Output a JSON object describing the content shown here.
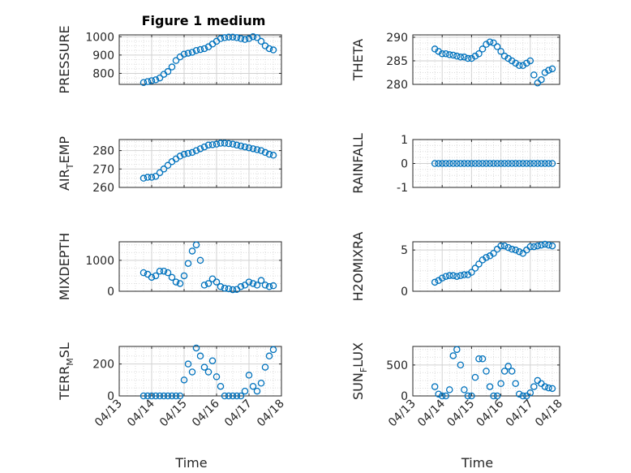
{
  "figure_title": "Figure 1 medium",
  "chart_data": [
    {
      "type": "scatter",
      "title": "Figure 1 medium",
      "ylabel_main": "PRESSURE",
      "ylabel_sub": "",
      "xlabel": "",
      "yticks": [
        "800",
        "900",
        "1000"
      ],
      "ytick_values": [
        800,
        900,
        1000
      ],
      "ylim": [
        740,
        1010
      ],
      "xticks": [],
      "xlim": [
        "04/13",
        "04/18"
      ],
      "grid": "major-and-minor",
      "series": [
        {
          "x": [
            "2021-04-13T18:00",
            "2021-04-13T21:00",
            "2021-04-14T00:00",
            "2021-04-14T03:00",
            "2021-04-14T06:00",
            "2021-04-14T09:00",
            "2021-04-14T12:00",
            "2021-04-14T15:00",
            "2021-04-14T18:00",
            "2021-04-14T21:00",
            "2021-04-15T00:00",
            "2021-04-15T03:00",
            "2021-04-15T06:00",
            "2021-04-15T09:00",
            "2021-04-15T12:00",
            "2021-04-15T15:00",
            "2021-04-15T18:00",
            "2021-04-15T21:00",
            "2021-04-16T00:00",
            "2021-04-16T03:00",
            "2021-04-16T06:00",
            "2021-04-16T09:00",
            "2021-04-16T12:00",
            "2021-04-16T15:00",
            "2021-04-16T18:00",
            "2021-04-16T21:00",
            "2021-04-17T00:00",
            "2021-04-17T03:00",
            "2021-04-17T06:00",
            "2021-04-17T09:00",
            "2021-04-17T12:00",
            "2021-04-17T15:00",
            "2021-04-17T18:00"
          ],
          "y": [
            750,
            755,
            760,
            765,
            775,
            795,
            810,
            835,
            870,
            890,
            905,
            910,
            915,
            925,
            930,
            935,
            945,
            960,
            975,
            990,
            995,
            998,
            998,
            995,
            990,
            985,
            990,
            1000,
            995,
            975,
            950,
            935,
            928
          ]
        }
      ]
    },
    {
      "type": "scatter",
      "ylabel_main": "THETA",
      "ylabel_sub": "",
      "xlabel": "",
      "yticks": [
        "280",
        "285",
        "290"
      ],
      "ytick_values": [
        280,
        285,
        290
      ],
      "ylim": [
        280,
        290.5
      ],
      "xticks": [],
      "xlim": [
        "04/13",
        "04/18"
      ],
      "grid": "major-and-minor",
      "series": [
        {
          "x": [
            "2021-04-13T18:00",
            "2021-04-13T21:00",
            "2021-04-14T00:00",
            "2021-04-14T03:00",
            "2021-04-14T06:00",
            "2021-04-14T09:00",
            "2021-04-14T12:00",
            "2021-04-14T15:00",
            "2021-04-14T18:00",
            "2021-04-14T21:00",
            "2021-04-15T00:00",
            "2021-04-15T03:00",
            "2021-04-15T06:00",
            "2021-04-15T09:00",
            "2021-04-15T12:00",
            "2021-04-15T15:00",
            "2021-04-15T18:00",
            "2021-04-15T21:00",
            "2021-04-16T00:00",
            "2021-04-16T03:00",
            "2021-04-16T06:00",
            "2021-04-16T09:00",
            "2021-04-16T12:00",
            "2021-04-16T15:00",
            "2021-04-16T18:00",
            "2021-04-16T21:00",
            "2021-04-17T00:00",
            "2021-04-17T03:00",
            "2021-04-17T06:00",
            "2021-04-17T09:00",
            "2021-04-17T12:00",
            "2021-04-17T15:00",
            "2021-04-17T18:00"
          ],
          "y": [
            287.5,
            287,
            286.5,
            286.5,
            286.3,
            286.2,
            286,
            285.8,
            285.8,
            285.5,
            285.5,
            286,
            286.5,
            287.5,
            288.5,
            289,
            288.8,
            288,
            287,
            286,
            285.5,
            285,
            284.5,
            284,
            284,
            284.5,
            285,
            282,
            280.3,
            281,
            282.5,
            283,
            283.3
          ]
        }
      ]
    },
    {
      "type": "scatter",
      "ylabel_main": "AIR",
      "ylabel_sub": "T",
      "ylabel_tail": "EMP",
      "xlabel": "",
      "yticks": [
        "260",
        "270",
        "280"
      ],
      "ytick_values": [
        260,
        270,
        280
      ],
      "ylim": [
        260,
        286
      ],
      "xticks": [],
      "xlim": [
        "04/13",
        "04/18"
      ],
      "grid": "major-and-minor",
      "series": [
        {
          "x": [
            "2021-04-13T18:00",
            "2021-04-13T21:00",
            "2021-04-14T00:00",
            "2021-04-14T03:00",
            "2021-04-14T06:00",
            "2021-04-14T09:00",
            "2021-04-14T12:00",
            "2021-04-14T15:00",
            "2021-04-14T18:00",
            "2021-04-14T21:00",
            "2021-04-15T00:00",
            "2021-04-15T03:00",
            "2021-04-15T06:00",
            "2021-04-15T09:00",
            "2021-04-15T12:00",
            "2021-04-15T15:00",
            "2021-04-15T18:00",
            "2021-04-15T21:00",
            "2021-04-16T00:00",
            "2021-04-16T03:00",
            "2021-04-16T06:00",
            "2021-04-16T09:00",
            "2021-04-16T12:00",
            "2021-04-16T15:00",
            "2021-04-16T18:00",
            "2021-04-16T21:00",
            "2021-04-17T00:00",
            "2021-04-17T03:00",
            "2021-04-17T06:00",
            "2021-04-17T09:00",
            "2021-04-17T12:00",
            "2021-04-17T15:00",
            "2021-04-17T18:00"
          ],
          "y": [
            265,
            265.5,
            265.5,
            266,
            268,
            270,
            272,
            274,
            275.5,
            277,
            278,
            278.5,
            279,
            280,
            281,
            282,
            283,
            283.2,
            283.5,
            284,
            284,
            283.8,
            283.5,
            283,
            282.5,
            282,
            281.5,
            281,
            280.5,
            280,
            279,
            278,
            277.5
          ]
        }
      ]
    },
    {
      "type": "scatter",
      "ylabel_main": "RAINFALL",
      "ylabel_sub": "",
      "xlabel": "",
      "yticks": [
        "-1",
        "0",
        "1"
      ],
      "ytick_values": [
        -1,
        0,
        1
      ],
      "ylim": [
        -1,
        1
      ],
      "xticks": [],
      "xlim": [
        "04/13",
        "04/18"
      ],
      "grid": "major-and-minor",
      "series": [
        {
          "x": [
            "2021-04-13T18:00",
            "2021-04-13T21:00",
            "2021-04-14T00:00",
            "2021-04-14T03:00",
            "2021-04-14T06:00",
            "2021-04-14T09:00",
            "2021-04-14T12:00",
            "2021-04-14T15:00",
            "2021-04-14T18:00",
            "2021-04-14T21:00",
            "2021-04-15T00:00",
            "2021-04-15T03:00",
            "2021-04-15T06:00",
            "2021-04-15T09:00",
            "2021-04-15T12:00",
            "2021-04-15T15:00",
            "2021-04-15T18:00",
            "2021-04-15T21:00",
            "2021-04-16T00:00",
            "2021-04-16T03:00",
            "2021-04-16T06:00",
            "2021-04-16T09:00",
            "2021-04-16T12:00",
            "2021-04-16T15:00",
            "2021-04-16T18:00",
            "2021-04-16T21:00",
            "2021-04-17T00:00",
            "2021-04-17T03:00",
            "2021-04-17T06:00",
            "2021-04-17T09:00",
            "2021-04-17T12:00",
            "2021-04-17T15:00",
            "2021-04-17T18:00"
          ],
          "y": [
            0,
            0,
            0,
            0,
            0,
            0,
            0,
            0,
            0,
            0,
            0,
            0,
            0,
            0,
            0,
            0,
            0,
            0,
            0,
            0,
            0,
            0,
            0,
            0,
            0,
            0,
            0,
            0,
            0,
            0,
            0,
            0,
            0
          ]
        }
      ]
    },
    {
      "type": "scatter",
      "ylabel_main": "MIXDEPTH",
      "ylabel_sub": "",
      "xlabel": "",
      "yticks": [
        "0",
        "1000"
      ],
      "ytick_values": [
        0,
        1000
      ],
      "ylim": [
        0,
        1600
      ],
      "xticks": [],
      "xlim": [
        "04/13",
        "04/18"
      ],
      "grid": "major-and-minor",
      "series": [
        {
          "x": [
            "2021-04-13T18:00",
            "2021-04-13T21:00",
            "2021-04-14T00:00",
            "2021-04-14T03:00",
            "2021-04-14T06:00",
            "2021-04-14T09:00",
            "2021-04-14T12:00",
            "2021-04-14T15:00",
            "2021-04-14T18:00",
            "2021-04-14T21:00",
            "2021-04-15T00:00",
            "2021-04-15T03:00",
            "2021-04-15T06:00",
            "2021-04-15T09:00",
            "2021-04-15T12:00",
            "2021-04-15T15:00",
            "2021-04-15T18:00",
            "2021-04-15T21:00",
            "2021-04-16T00:00",
            "2021-04-16T03:00",
            "2021-04-16T06:00",
            "2021-04-16T09:00",
            "2021-04-16T12:00",
            "2021-04-16T15:00",
            "2021-04-16T18:00",
            "2021-04-16T21:00",
            "2021-04-17T00:00",
            "2021-04-17T03:00",
            "2021-04-17T06:00",
            "2021-04-17T09:00",
            "2021-04-17T12:00",
            "2021-04-17T15:00",
            "2021-04-17T18:00"
          ],
          "y": [
            600,
            550,
            450,
            500,
            650,
            650,
            600,
            450,
            300,
            250,
            500,
            900,
            1300,
            1500,
            1000,
            200,
            250,
            400,
            300,
            150,
            100,
            80,
            50,
            60,
            150,
            200,
            300,
            250,
            200,
            350,
            200,
            150,
            180
          ]
        }
      ]
    },
    {
      "type": "scatter",
      "ylabel_main": "H2OMIXRA",
      "ylabel_sub": "",
      "xlabel": "",
      "yticks": [
        "0",
        "5"
      ],
      "ytick_values": [
        0,
        5
      ],
      "ylim": [
        0,
        6
      ],
      "xticks": [],
      "xlim": [
        "04/13",
        "04/18"
      ],
      "grid": "major-and-minor",
      "series": [
        {
          "x": [
            "2021-04-13T18:00",
            "2021-04-13T21:00",
            "2021-04-14T00:00",
            "2021-04-14T03:00",
            "2021-04-14T06:00",
            "2021-04-14T09:00",
            "2021-04-14T12:00",
            "2021-04-14T15:00",
            "2021-04-14T18:00",
            "2021-04-14T21:00",
            "2021-04-15T00:00",
            "2021-04-15T03:00",
            "2021-04-15T06:00",
            "2021-04-15T09:00",
            "2021-04-15T12:00",
            "2021-04-15T15:00",
            "2021-04-15T18:00",
            "2021-04-15T21:00",
            "2021-04-16T00:00",
            "2021-04-16T03:00",
            "2021-04-16T06:00",
            "2021-04-16T09:00",
            "2021-04-16T12:00",
            "2021-04-16T15:00",
            "2021-04-16T18:00",
            "2021-04-16T21:00",
            "2021-04-17T00:00",
            "2021-04-17T03:00",
            "2021-04-17T06:00",
            "2021-04-17T09:00",
            "2021-04-17T12:00",
            "2021-04-17T15:00",
            "2021-04-17T18:00"
          ],
          "y": [
            1.1,
            1.3,
            1.6,
            1.8,
            1.9,
            1.9,
            1.8,
            1.9,
            2,
            2,
            2.3,
            2.8,
            3.3,
            3.8,
            4.1,
            4.3,
            4.6,
            5.1,
            5.5,
            5.5,
            5.3,
            5.1,
            5,
            4.8,
            4.6,
            5,
            5.4,
            5.4,
            5.5,
            5.6,
            5.7,
            5.6,
            5.5
          ]
        }
      ]
    },
    {
      "type": "scatter",
      "ylabel_main": "TERR",
      "ylabel_sub": "M",
      "ylabel_tail": "SL",
      "xlabel": "Time",
      "yticks": [
        "0",
        "200"
      ],
      "ytick_values": [
        0,
        200
      ],
      "ylim": [
        0,
        310
      ],
      "xticks": [
        "04/13",
        "04/14",
        "04/15",
        "04/16",
        "04/17",
        "04/18"
      ],
      "xlim": [
        "04/13",
        "04/18"
      ],
      "grid": "major-and-minor",
      "series": [
        {
          "x": [
            "2021-04-13T18:00",
            "2021-04-13T21:00",
            "2021-04-14T00:00",
            "2021-04-14T03:00",
            "2021-04-14T06:00",
            "2021-04-14T09:00",
            "2021-04-14T12:00",
            "2021-04-14T15:00",
            "2021-04-14T18:00",
            "2021-04-14T21:00",
            "2021-04-15T00:00",
            "2021-04-15T03:00",
            "2021-04-15T06:00",
            "2021-04-15T09:00",
            "2021-04-15T12:00",
            "2021-04-15T15:00",
            "2021-04-15T18:00",
            "2021-04-15T21:00",
            "2021-04-16T00:00",
            "2021-04-16T03:00",
            "2021-04-16T06:00",
            "2021-04-16T09:00",
            "2021-04-16T12:00",
            "2021-04-16T15:00",
            "2021-04-16T18:00",
            "2021-04-16T21:00",
            "2021-04-17T00:00",
            "2021-04-17T03:00",
            "2021-04-17T06:00",
            "2021-04-17T09:00",
            "2021-04-17T12:00",
            "2021-04-17T15:00",
            "2021-04-17T18:00"
          ],
          "y": [
            0,
            0,
            0,
            0,
            0,
            0,
            0,
            0,
            0,
            0,
            100,
            200,
            150,
            300,
            250,
            180,
            150,
            220,
            120,
            60,
            0,
            0,
            0,
            0,
            0,
            30,
            130,
            60,
            30,
            80,
            180,
            250,
            290
          ]
        }
      ]
    },
    {
      "type": "scatter",
      "ylabel_main": "SUN",
      "ylabel_sub": "F",
      "ylabel_tail": "LUX",
      "xlabel": "Time",
      "yticks": [
        "0",
        "500"
      ],
      "ytick_values": [
        0,
        500
      ],
      "ylim": [
        0,
        800
      ],
      "xticks": [
        "04/13",
        "04/14",
        "04/15",
        "04/16",
        "04/17",
        "04/18"
      ],
      "xlim": [
        "04/13",
        "04/18"
      ],
      "grid": "major-and-minor",
      "series": [
        {
          "x": [
            "2021-04-13T18:00",
            "2021-04-13T21:00",
            "2021-04-14T00:00",
            "2021-04-14T03:00",
            "2021-04-14T06:00",
            "2021-04-14T09:00",
            "2021-04-14T12:00",
            "2021-04-14T15:00",
            "2021-04-14T18:00",
            "2021-04-14T21:00",
            "2021-04-15T00:00",
            "2021-04-15T03:00",
            "2021-04-15T06:00",
            "2021-04-15T09:00",
            "2021-04-15T12:00",
            "2021-04-15T15:00",
            "2021-04-15T18:00",
            "2021-04-15T21:00",
            "2021-04-16T00:00",
            "2021-04-16T03:00",
            "2021-04-16T06:00",
            "2021-04-16T09:00",
            "2021-04-16T12:00",
            "2021-04-16T15:00",
            "2021-04-16T18:00",
            "2021-04-16T21:00",
            "2021-04-17T00:00",
            "2021-04-17T03:00",
            "2021-04-17T06:00",
            "2021-04-17T09:00",
            "2021-04-17T12:00",
            "2021-04-17T15:00",
            "2021-04-17T18:00"
          ],
          "y": [
            150,
            30,
            0,
            0,
            100,
            650,
            750,
            500,
            100,
            0,
            0,
            300,
            600,
            600,
            400,
            150,
            0,
            0,
            200,
            400,
            480,
            400,
            200,
            30,
            0,
            0,
            50,
            150,
            250,
            200,
            150,
            130,
            120
          ]
        }
      ]
    }
  ]
}
